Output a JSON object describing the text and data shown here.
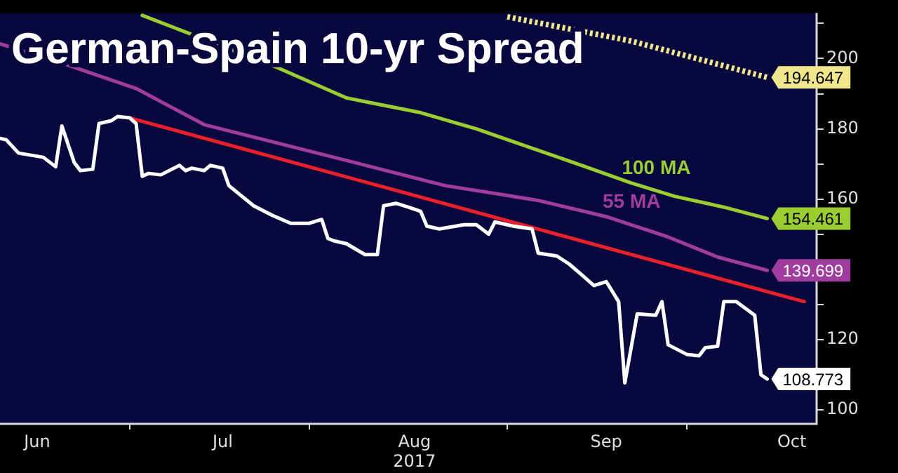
{
  "chart_data": {
    "type": "line",
    "title": "German-Spain 10-yr Spread",
    "xlim": [
      "2017-05-26",
      "2017-10-05"
    ],
    "xticks": [
      {
        "value": "2017-06-01",
        "label": "Jun"
      },
      {
        "value": "2017-06-16",
        "label": null
      },
      {
        "value": "2017-07-01",
        "label": "Jul"
      },
      {
        "value": "2017-07-15",
        "label": null
      },
      {
        "value": "2017-08-01",
        "label": "Aug\n2017"
      },
      {
        "value": "2017-08-16",
        "label": null
      },
      {
        "value": "2017-09-01",
        "label": "Sep"
      },
      {
        "value": "2017-09-14",
        "label": null
      },
      {
        "value": "2017-10-01",
        "label": "Oct"
      }
    ],
    "ylim": [
      96,
      213
    ],
    "yticks": [
      100,
      {
        "value": 110,
        "label": null
      },
      120,
      {
        "value": 130,
        "label": null
      },
      {
        "value": 140,
        "label": null
      },
      {
        "value": 150,
        "label": null
      },
      160,
      {
        "value": 170,
        "label": null
      },
      180,
      {
        "value": 190,
        "label": null
      },
      200,
      {
        "value": 210,
        "label": null
      }
    ],
    "grid": false,
    "legend": false,
    "marker": "none",
    "series": [
      {
        "color": "#ffffff",
        "x": [
          "2017-05-26",
          "2017-05-27",
          "2017-05-29",
          "2017-06-02",
          "2017-06-04",
          "2017-06-05",
          "2017-06-07",
          "2017-06-08",
          "2017-06-10",
          "2017-06-11",
          "2017-06-13",
          "2017-06-14",
          "2017-06-16",
          "2017-06-17",
          "2017-06-18",
          "2017-06-19",
          "2017-06-21",
          "2017-06-24",
          "2017-06-25",
          "2017-06-26",
          "2017-06-28",
          "2017-06-29",
          "2017-07-01",
          "2017-07-02",
          "2017-07-06",
          "2017-07-09",
          "2017-07-12",
          "2017-07-15",
          "2017-07-17",
          "2017-07-18",
          "2017-07-19",
          "2017-07-21",
          "2017-07-24",
          "2017-07-26",
          "2017-07-27",
          "2017-07-29",
          "2017-07-31",
          "2017-08-02",
          "2017-08-03",
          "2017-08-05",
          "2017-08-09",
          "2017-08-11",
          "2017-08-13",
          "2017-08-14",
          "2017-08-17",
          "2017-08-20",
          "2017-08-21",
          "2017-08-24",
          "2017-08-26",
          "2017-08-28",
          "2017-08-30",
          "2017-09-01",
          "2017-09-03",
          "2017-09-04",
          "2017-09-06",
          "2017-09-09",
          "2017-09-10",
          "2017-09-11",
          "2017-09-14",
          "2017-09-16",
          "2017-09-17",
          "2017-09-19",
          "2017-09-20",
          "2017-09-22",
          "2017-09-25",
          "2017-09-26",
          "2017-09-27"
        ],
        "values": [
          177.3,
          176.9,
          173.1,
          171.9,
          169.2,
          180.8,
          170.4,
          168.1,
          168.5,
          181.5,
          182.3,
          183.5,
          183.1,
          181.5,
          166.5,
          167.3,
          166.9,
          169.6,
          168.1,
          168.8,
          168.1,
          169.6,
          168.8,
          163.8,
          158.1,
          155.4,
          153.1,
          153.1,
          154.2,
          148.8,
          148.1,
          147.3,
          144.2,
          144.2,
          158.1,
          158.8,
          157.7,
          156.5,
          152.3,
          151.5,
          152.7,
          152.7,
          150,
          153.5,
          152.3,
          151.5,
          144.6,
          143.8,
          141.5,
          138.5,
          135.4,
          136.5,
          130.8,
          107.7,
          127.3,
          126.9,
          130.8,
          118.5,
          115.8,
          115.4,
          117.7,
          118.1,
          130.8,
          130.8,
          126.9,
          110,
          108.773
        ],
        "value_labels": [
          null,
          null,
          null,
          null,
          null,
          null,
          null,
          null,
          null,
          null,
          null,
          null,
          null,
          null,
          null,
          null,
          null,
          null,
          null,
          null,
          null,
          null,
          null,
          null,
          null,
          null,
          null,
          null,
          null,
          null,
          null,
          null,
          null,
          null,
          null,
          null,
          null,
          null,
          null,
          null,
          null,
          null,
          null,
          null,
          null,
          null,
          null,
          null,
          null,
          null,
          null,
          null,
          null,
          null,
          null,
          null,
          null,
          null,
          null,
          null,
          null,
          null,
          null,
          null,
          null,
          null,
          "108.773"
        ]
      },
      {
        "name": "55 MA",
        "color": "#a03c9e",
        "x": [
          "2017-05-26",
          "2017-06-06",
          "2017-06-17",
          "2017-06-28",
          "2017-07-12",
          "2017-07-25",
          "2017-08-06",
          "2017-08-13",
          "2017-08-21",
          "2017-09-01",
          "2017-09-11",
          "2017-09-19",
          "2017-09-27"
        ],
        "values": [
          204.2,
          198.1,
          191.5,
          181.2,
          175,
          169.2,
          163.8,
          161.9,
          159.6,
          155,
          149.2,
          143.5,
          139.699
        ],
        "value_labels": [
          null,
          null,
          null,
          null,
          null,
          null,
          null,
          null,
          null,
          null,
          null,
          null,
          "139.699"
        ]
      },
      {
        "name": "100 MA",
        "color": "#9acd32",
        "x": [
          "2017-06-18",
          "2017-06-27",
          "2017-07-10",
          "2017-07-21",
          "2017-08-02",
          "2017-08-11",
          "2017-08-28",
          "2017-09-05",
          "2017-09-12",
          "2017-09-20",
          "2017-09-27"
        ],
        "values": [
          212.3,
          206.2,
          197.3,
          188.8,
          184.6,
          180,
          169.6,
          164.6,
          160.8,
          157.7,
          154.461
        ],
        "value_labels": [
          null,
          null,
          null,
          null,
          null,
          null,
          null,
          null,
          null,
          null,
          "154.461"
        ]
      },
      {
        "color": "#f0e68c",
        "line_style": "dotted",
        "x": [
          "2017-08-16",
          "2017-09-05",
          "2017-09-27"
        ],
        "values": [
          211.9,
          205,
          194.647
        ],
        "value_labels": [
          null,
          null,
          "194.647"
        ]
      },
      {
        "color": "#e8202a",
        "x": [
          "2017-06-16",
          "2017-10-03"
        ],
        "values": [
          183.1,
          130.8
        ]
      }
    ]
  }
}
